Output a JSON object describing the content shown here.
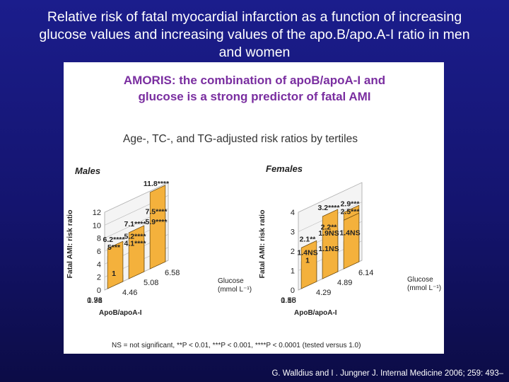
{
  "slide": {
    "title": "Relative risk of fatal myocardial infarction as a function of increasing\nglucose values and increasing values of the apo.B/apo.A-I ratio in men\nand women",
    "citation": "G. Walldius and I . Jungner J. Internal Medicine 2006; 259: 493–"
  },
  "colors": {
    "background": "#1b1d8c",
    "bar": "#f4b13c",
    "bar_light": "#fbe7a8",
    "header_text": "#7a2ea0"
  },
  "figure": {
    "header_line1": "AMORIS: the combination of apoB/apoA-I and",
    "header_line2": "glucose is a strong predictor of fatal AMI",
    "subtitle": "Age-, TC-, and TG-adjusted risk ratios by tertiles",
    "footnote": "NS = not significant, **P < 0.01, ***P < 0.001, ****P < 0.0001 (tested versus 1.0)"
  },
  "chart_data": [
    {
      "type": "bar",
      "title": "Males",
      "ylabel": "Fatal AMI: risk ratio",
      "ylim": [
        0,
        12
      ],
      "yticks": [
        "0",
        "2",
        "4",
        "6",
        "8",
        "10",
        "12"
      ],
      "apob_tertiles": [
        "1.36",
        "0.98",
        "0.71"
      ],
      "apob_label": "ApoB/apoA-I",
      "glucose_tertiles": [
        "4.46",
        "5.08",
        "6.58"
      ],
      "glucose_label": "Glucose (mmol L⁻¹)",
      "values": [
        [
          1,
          4.1,
          5.9
        ],
        [
          5,
          5.2,
          7.5
        ],
        [
          6.2,
          7.1,
          11.8
        ]
      ],
      "labels": [
        [
          "1",
          "4.1****",
          "5.9****"
        ],
        [
          "5***",
          "5.2****",
          "7.5****"
        ],
        [
          "6.2****",
          "7.1****",
          "11.8****"
        ]
      ]
    },
    {
      "type": "bar",
      "title": "Females",
      "ylabel": "Fatal AMI: risk ratio",
      "ylim": [
        0,
        4
      ],
      "yticks": [
        "0",
        "1",
        "2",
        "3",
        "4"
      ],
      "apob_tertiles": [
        "1.16",
        "0.85",
        "0.58"
      ],
      "apob_label": "ApoB/apoA-I",
      "glucose_tertiles": [
        "4.29",
        "4.89",
        "6.14"
      ],
      "glucose_label": "Glucose (mmol L⁻¹)",
      "values": [
        [
          1,
          1.1,
          1.4
        ],
        [
          1.4,
          1.9,
          2.9
        ],
        [
          2.1,
          2.2,
          2.5
        ],
        [
          0,
          3.2,
          0
        ]
      ],
      "labels": [
        [
          "1",
          "1.1NS",
          "1.4NS"
        ],
        [
          "1.4NS",
          "1.9NS",
          "2.9***"
        ],
        [
          "2.1**",
          "2.2**",
          "2.5***"
        ],
        [
          "",
          "3.2****",
          ""
        ]
      ]
    }
  ]
}
